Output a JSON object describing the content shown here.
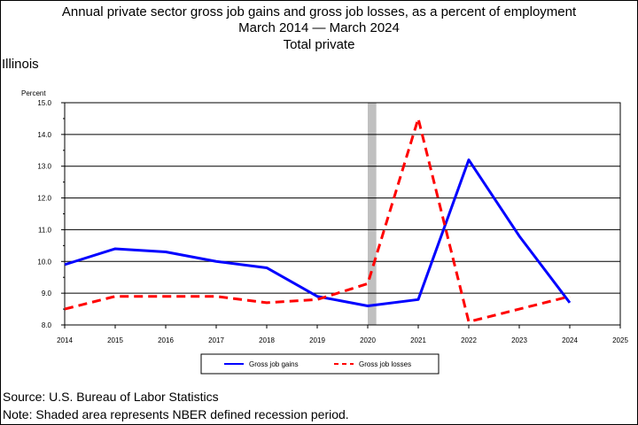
{
  "title_line1": "Annual private sector gross job gains and gross job losses, as a percent of employment",
  "title_line2": "March 2014  — March 2024",
  "title_line3": "Total private",
  "region": "Illinois",
  "footer": {
    "source": "Source: U.S. Bureau of Labor Statistics",
    "note": "Note: Shaded area represents NBER defined recession period."
  },
  "chart_data": {
    "type": "line",
    "ylabel": "Percent",
    "ylim": [
      8.0,
      15.0
    ],
    "xlim": [
      2014,
      2025
    ],
    "yticks": [
      "8.0",
      "9.0",
      "10.0",
      "11.0",
      "12.0",
      "13.0",
      "14.0",
      "15.0"
    ],
    "xticks": [
      "2014",
      "2015",
      "2016",
      "2017",
      "2018",
      "2019",
      "2020",
      "2021",
      "2022",
      "2023",
      "2024",
      "2025"
    ],
    "grid": "horizontal",
    "recession": [
      2020.0,
      2020.17
    ],
    "x": [
      2014,
      2015,
      2016,
      2017,
      2018,
      2019,
      2020,
      2021,
      2022,
      2023,
      2024
    ],
    "series": [
      {
        "name": "Gross job gains",
        "color": "#0000ff",
        "style": "solid",
        "values": [
          9.9,
          10.4,
          10.3,
          10.0,
          9.8,
          8.9,
          8.6,
          8.8,
          13.2,
          10.8,
          8.7
        ]
      },
      {
        "name": "Gross job losses",
        "color": "#ff0000",
        "style": "dashed",
        "values": [
          8.5,
          8.9,
          8.9,
          8.9,
          8.7,
          8.8,
          9.3,
          14.5,
          8.1,
          8.5,
          8.9
        ]
      }
    ],
    "legend_position": "bottom-center"
  }
}
